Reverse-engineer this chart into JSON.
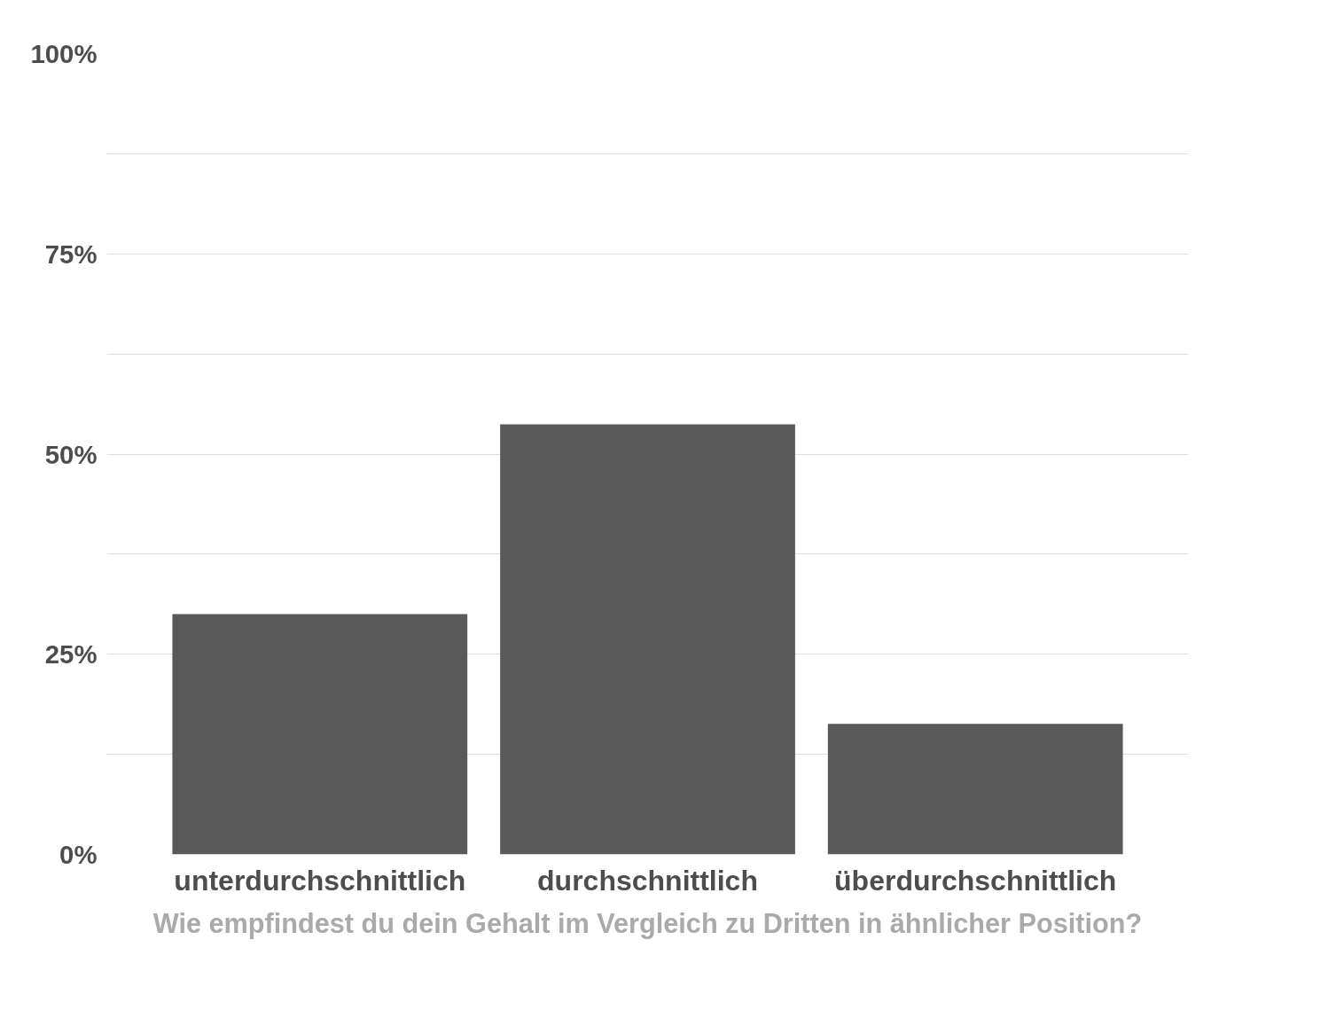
{
  "chart_data": {
    "type": "bar",
    "xlabel": "Wie empfindest du dein Gehalt im Vergleich zu Dritten in ähnlicher Position?",
    "categories": [
      "unterdurchschnittlich",
      "durchschnittlich",
      "überdurchschnittlich"
    ],
    "values": [
      30,
      53.7,
      16.3
    ],
    "color": "#595959",
    "ylim": [
      0,
      100
    ],
    "yticks": [
      {
        "value": 0,
        "label": "0%"
      },
      {
        "value": 12.5,
        "label": null
      },
      {
        "value": 25,
        "label": "25%"
      },
      {
        "value": 37.5,
        "label": null
      },
      {
        "value": 50,
        "label": "50%"
      },
      {
        "value": 62.5,
        "label": null
      },
      {
        "value": 75,
        "label": "75%"
      },
      {
        "value": 87.5,
        "label": null
      },
      {
        "value": 100,
        "label": "100%"
      }
    ],
    "grid": "y"
  }
}
